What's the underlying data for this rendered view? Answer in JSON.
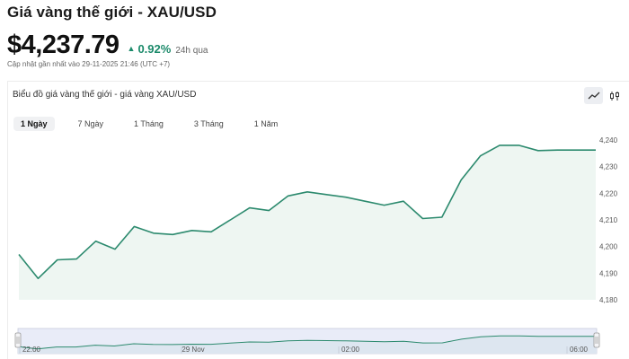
{
  "header": {
    "title": "Giá vàng thế giới - XAU/USD",
    "price": "$4,237.79",
    "change_pct": "0.92%",
    "change_period": "24h qua",
    "updated": "Cập nhật gần nhất vào 29-11-2025 21:46 (UTC +7)"
  },
  "chart_panel": {
    "title": "Biểu đồ giá vàng thế giới - giá vàng XAU/USD",
    "tools": [
      {
        "name": "line-chart-icon",
        "active": true
      },
      {
        "name": "candlestick-icon",
        "active": false
      }
    ],
    "tabs": [
      {
        "label": "1 Ngày",
        "active": true
      },
      {
        "label": "7 Ngày",
        "active": false
      },
      {
        "label": "1 Tháng",
        "active": false
      },
      {
        "label": "3 Tháng",
        "active": false
      },
      {
        "label": "1 Năm",
        "active": false
      }
    ]
  },
  "colors": {
    "line": "#2c8a6e",
    "area": "#eef6f2",
    "positive": "#1b8a6a"
  },
  "chart_data": {
    "type": "area",
    "y_ticks": [
      "4,240",
      "4,230",
      "4,220",
      "4,210",
      "4,200",
      "4,190",
      "4,180"
    ],
    "y_tick_values": [
      4240,
      4230,
      4220,
      4210,
      4200,
      4190,
      4180
    ],
    "ylim": [
      4180,
      4242
    ],
    "y_axis_position": "right",
    "values": [
      4197,
      4188,
      4195,
      4195.3,
      4202,
      4199,
      4207.5,
      4205,
      4204.5,
      4206,
      4205.5,
      4210,
      4214.5,
      4213.5,
      4219,
      4220.5,
      4219.5,
      4218.5,
      4217,
      4215.5,
      4217,
      4210.5,
      4211,
      4225,
      4234,
      4238,
      4238,
      4236,
      4236.2,
      4236.2,
      4236.2
    ],
    "navigator": {
      "x_labels": [
        "22:00",
        "29 Nov",
        "02:00",
        "06:00"
      ]
    },
    "grid": false,
    "legend": "none"
  }
}
